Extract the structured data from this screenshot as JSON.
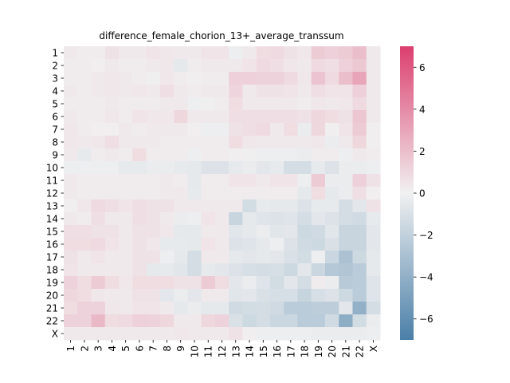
{
  "chart_data": {
    "type": "heatmap",
    "title": "difference_female_chorion_13+_average_transsum",
    "xlabel": "",
    "ylabel": "",
    "x_categories": [
      "1",
      "2",
      "3",
      "4",
      "5",
      "6",
      "7",
      "8",
      "9",
      "10",
      "11",
      "12",
      "13",
      "14",
      "15",
      "16",
      "17",
      "18",
      "19",
      "20",
      "21",
      "22",
      "X"
    ],
    "y_categories": [
      "1",
      "2",
      "3",
      "4",
      "5",
      "6",
      "7",
      "8",
      "9",
      "10",
      "11",
      "12",
      "13",
      "14",
      "15",
      "16",
      "17",
      "18",
      "19",
      "20",
      "21",
      "22",
      "X"
    ],
    "colorbar": {
      "vmin": -7,
      "vmax": 7,
      "ticks": [
        -6,
        -4,
        -2,
        0,
        2,
        4,
        6
      ],
      "tick_labels": [
        "−6",
        "−4",
        "−2",
        "0",
        "2",
        "4",
        "6"
      ],
      "low_color": "#4a7fa8",
      "mid_color": "#f1f1f1",
      "high_color": "#dc3f6f"
    },
    "values": [
      [
        0.3,
        0.2,
        0.2,
        0.6,
        0.3,
        0.3,
        0.5,
        0.4,
        0.3,
        0.3,
        0.5,
        0.5,
        -0.2,
        0.3,
        0.8,
        0.9,
        0.6,
        0.4,
        1.5,
        1.3,
        1.5,
        2.0,
        0.3
      ],
      [
        0.2,
        0.2,
        0.1,
        0.3,
        0.2,
        0.2,
        0.3,
        0.4,
        -0.5,
        0.2,
        0.3,
        0.3,
        0.3,
        0.5,
        0.9,
        0.7,
        0.4,
        0.3,
        0.9,
        0.7,
        1.3,
        1.6,
        0.3
      ],
      [
        0.2,
        0.2,
        0.3,
        0.4,
        0.3,
        0.2,
        -0.1,
        0.4,
        0.2,
        0.1,
        0.2,
        0.2,
        1.3,
        1.3,
        1.2,
        1.2,
        0.9,
        0.4,
        1.8,
        0.9,
        2.0,
        3.0,
        0.3
      ],
      [
        0.3,
        0.2,
        0.3,
        0.4,
        0.3,
        0.4,
        0.3,
        0.7,
        0.3,
        0.2,
        0.3,
        0.3,
        1.1,
        0.3,
        0.6,
        0.6,
        0.5,
        0.3,
        0.7,
        0.5,
        0.5,
        1.3,
        0.3
      ],
      [
        0.2,
        0.2,
        0.2,
        0.3,
        0.2,
        0.2,
        0.2,
        0.3,
        0.3,
        -0.2,
        -0.1,
        0.2,
        0.8,
        0.3,
        0.3,
        0.3,
        0.3,
        0.2,
        0.4,
        0.3,
        0.4,
        0.9,
        0.3
      ],
      [
        0.3,
        0.2,
        0.2,
        0.4,
        0.2,
        0.5,
        0.4,
        0.4,
        1.0,
        0.3,
        0.3,
        0.3,
        0.7,
        0.7,
        0.7,
        0.7,
        0.7,
        0.6,
        1.0,
        0.8,
        0.6,
        1.7,
        0.3
      ],
      [
        0.4,
        0.2,
        0.1,
        0.1,
        0.3,
        0.2,
        0.3,
        0.3,
        0.3,
        0.1,
        -0.2,
        -0.2,
        0.6,
        0.7,
        0.9,
        0.3,
        0.8,
        -0.3,
        1.0,
        0.1,
        0.5,
        1.5,
        0.1
      ],
      [
        0.4,
        0.3,
        0.4,
        0.7,
        0.3,
        0.3,
        0.3,
        0.2,
        0.2,
        0.2,
        0.2,
        0.2,
        0.8,
        0.4,
        0.3,
        0.3,
        0.3,
        0.3,
        0.4,
        -0.3,
        0.3,
        1.0,
        0.1
      ],
      [
        0.3,
        -0.4,
        0.2,
        0.3,
        0.2,
        0.8,
        0.2,
        0.2,
        0.2,
        -0.2,
        0.2,
        0.2,
        0.1,
        -0.1,
        -0.2,
        -0.2,
        -0.2,
        -0.3,
        0.2,
        0.2,
        -0.2,
        0.3,
        0.2
      ],
      [
        -0.2,
        -0.2,
        -0.2,
        -0.2,
        -0.4,
        -0.4,
        -0.3,
        -0.3,
        -0.4,
        -0.5,
        -0.9,
        -0.9,
        -0.4,
        -0.3,
        -0.6,
        -0.4,
        -1.2,
        -1.2,
        -0.4,
        -0.9,
        -0.3,
        -0.3,
        -0.2
      ],
      [
        0.3,
        0.2,
        0.2,
        0.2,
        0.2,
        0.2,
        0.2,
        0.3,
        0.2,
        -0.5,
        0.2,
        0.2,
        0.5,
        0.5,
        0.3,
        0.5,
        0.5,
        -0.2,
        1.5,
        -0.3,
        -0.3,
        1.3,
        0.6
      ],
      [
        0.3,
        0.2,
        0.2,
        0.2,
        0.2,
        0.2,
        0.2,
        0.3,
        0.3,
        -0.4,
        0.2,
        0.2,
        0.2,
        0.2,
        0.2,
        0.2,
        0.2,
        -0.5,
        0.8,
        -0.5,
        -0.3,
        0.7,
        0.1
      ],
      [
        0.1,
        0.4,
        0.9,
        0.7,
        0.5,
        0.7,
        0.6,
        0.6,
        0.3,
        0.3,
        0.3,
        0.3,
        0.3,
        -1.3,
        -0.4,
        -0.5,
        -0.5,
        -0.9,
        -0.4,
        -0.4,
        -1.2,
        -0.6,
        0.6
      ],
      [
        0.3,
        0.2,
        0.7,
        0.3,
        0.3,
        0.7,
        0.6,
        0.3,
        -0.3,
        -0.2,
        0.5,
        0.3,
        -1.7,
        -0.5,
        -0.8,
        -0.9,
        -0.8,
        -1.2,
        -0.6,
        -0.9,
        -1.2,
        -1.4,
        -0.4
      ],
      [
        0.7,
        0.7,
        0.6,
        0.6,
        0.3,
        0.6,
        0.6,
        0.4,
        -0.5,
        -0.5,
        0.3,
        0.3,
        -0.7,
        -0.5,
        -0.3,
        -0.7,
        -0.6,
        -1.5,
        -1.4,
        -0.7,
        -1.7,
        -1.7,
        -0.6
      ],
      [
        0.8,
        0.8,
        0.9,
        0.5,
        0.3,
        0.6,
        0.4,
        -0.4,
        -0.4,
        -0.5,
        0.5,
        0.3,
        -0.9,
        -0.8,
        -0.5,
        -0.2,
        -0.9,
        -1.4,
        -1.5,
        -1.0,
        -1.7,
        -1.7,
        -0.6
      ],
      [
        0.6,
        0.3,
        0.5,
        0.3,
        0.3,
        0.6,
        0.6,
        -0.2,
        -0.5,
        -1.2,
        0.3,
        0.3,
        -0.5,
        -0.6,
        -0.5,
        -0.6,
        -1.0,
        -1.3,
        -0.2,
        -1.6,
        -2.9,
        -1.5,
        -0.5
      ],
      [
        0.5,
        0.3,
        0.3,
        0.3,
        0.3,
        0.6,
        -0.5,
        -0.4,
        -0.7,
        -1.2,
        -0.4,
        -0.6,
        -0.9,
        -1.1,
        -1.2,
        -1.1,
        -1.5,
        -0.6,
        -1.6,
        -2.5,
        -2.7,
        -2.3,
        -0.5
      ],
      [
        1.2,
        0.8,
        1.5,
        0.8,
        0.4,
        0.8,
        0.8,
        0.8,
        0.6,
        0.6,
        1.5,
        0.8,
        -0.6,
        -0.3,
        -0.8,
        -1.3,
        -0.6,
        -1.2,
        0.2,
        -0.3,
        -2.4,
        -2.3,
        -0.8
      ],
      [
        1.0,
        0.8,
        0.4,
        0.3,
        0.3,
        0.6,
        0.6,
        -0.6,
        -0.3,
        -0.6,
        0.3,
        0.3,
        -0.7,
        -0.6,
        -1.0,
        -1.1,
        -1.1,
        -1.8,
        -1.1,
        -0.9,
        -1.5,
        -2.3,
        -0.8
      ],
      [
        0.8,
        1.2,
        1.2,
        0.4,
        0.3,
        0.5,
        0.5,
        0.3,
        -0.5,
        -0.3,
        -0.5,
        -0.5,
        -1.4,
        -1.3,
        -1.2,
        -1.4,
        -2.3,
        -2.3,
        -2.2,
        -2.2,
        -0.6,
        -4.0,
        -1.2
      ],
      [
        1.2,
        1.2,
        2.2,
        0.8,
        0.9,
        1.3,
        1.2,
        1.0,
        0.3,
        0.3,
        1.0,
        1.2,
        -1.0,
        -1.5,
        -1.2,
        -1.6,
        -1.6,
        -2.3,
        -2.3,
        -1.4,
        -4.2,
        -1.3,
        -0.3
      ],
      [
        0.3,
        0.3,
        0.3,
        0.3,
        0.3,
        0.3,
        0.3,
        0.3,
        0.4,
        0.3,
        0.3,
        0.3,
        0.6,
        0.1,
        -0.2,
        -0.2,
        -0.2,
        -0.2,
        -0.3,
        -0.3,
        -0.3,
        -0.3,
        -0.2
      ]
    ]
  }
}
